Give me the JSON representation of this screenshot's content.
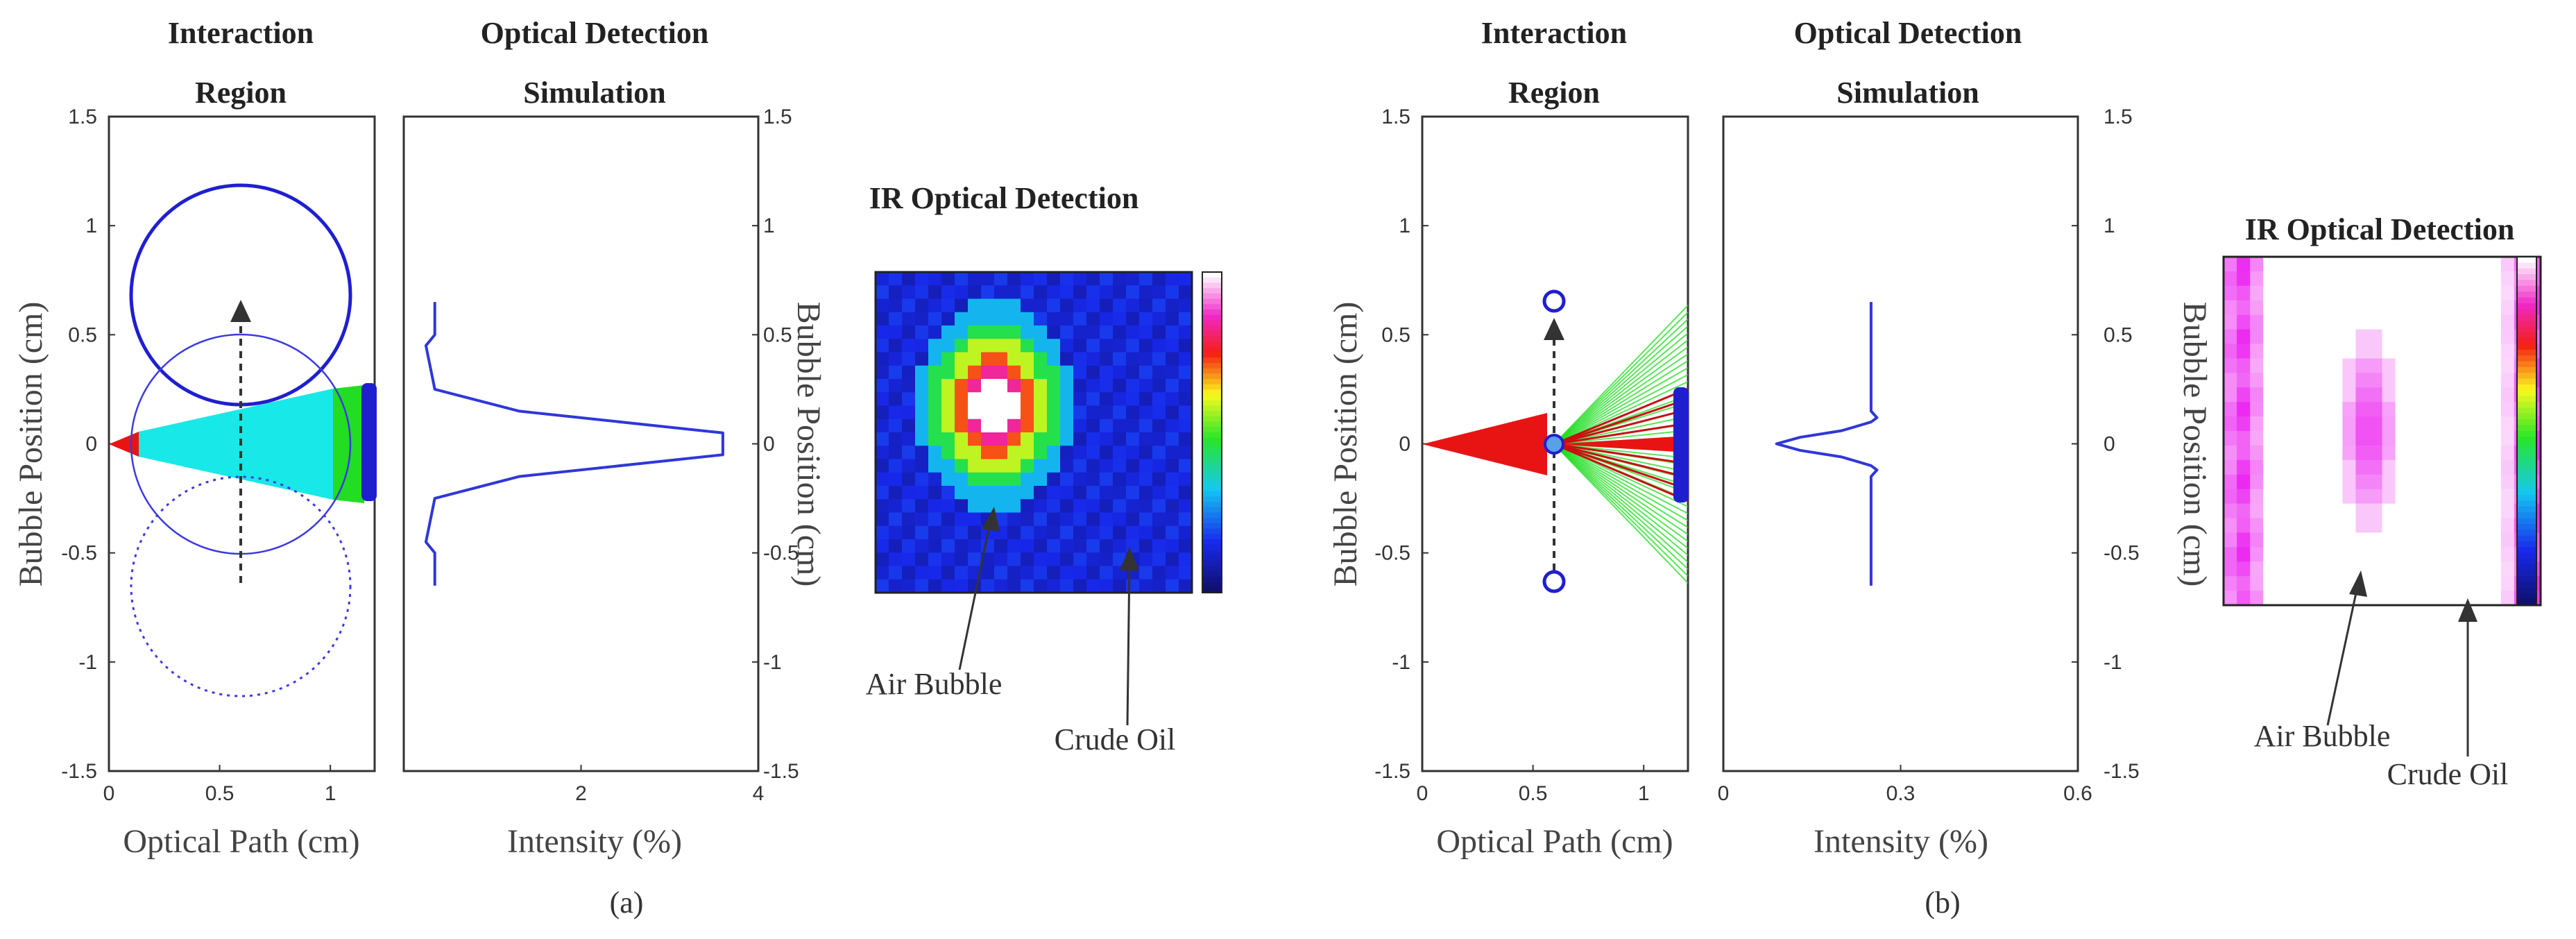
{
  "colors": {
    "bubble": "#1f1fd0",
    "cone_cyan": "#18e8e8",
    "cone_green": "#22dd22",
    "cone_red": "#e81414",
    "detector": "#1f1fd0",
    "trace": "#2f37d8",
    "ir_low": "#101060",
    "ir_high": "#ff66ff"
  },
  "panels": [
    {
      "id": "a",
      "caption": "(a)",
      "interaction": {
        "title_line1": "Interaction",
        "title_line2": "Region",
        "xlabel": "Optical Path (cm)",
        "ylabel": "Bubble Position (cm)",
        "xticks": [
          "0",
          "0.5",
          "1"
        ],
        "yticks": [
          "1.5",
          "1",
          "0.5",
          "0",
          "-0.5",
          "-1",
          "-1.5"
        ],
        "bubble_radius_cm": 0.5,
        "bubble_center_x_cm": 0.6,
        "bubble_positions_cm": [
          0.65,
          0,
          -0.65
        ]
      },
      "simulation": {
        "title_line1": "Optical Detection",
        "title_line2": "Simulation",
        "xlabel": "Intensity (%)",
        "ylabel": "Bubble Position (cm)",
        "xticks": [
          "2",
          "4"
        ],
        "yticks": [
          "1.5",
          "1",
          "0.5",
          "0",
          "-0.5",
          "-1",
          "-1.5"
        ]
      },
      "ir": {
        "title": "IR Optical Detection",
        "label_bubble": "Air Bubble",
        "label_oil": "Crude Oil"
      }
    },
    {
      "id": "b",
      "caption": "(b)",
      "interaction": {
        "title_line1": "Interaction",
        "title_line2": "Region",
        "xlabel": "Optical Path (cm)",
        "ylabel": "Bubble Position (cm)",
        "xticks": [
          "0",
          "0.5",
          "1"
        ],
        "yticks": [
          "1.5",
          "1",
          "0.5",
          "0",
          "-0.5",
          "-1",
          "-1.5"
        ],
        "bubble_radius_cm": 0.04,
        "bubble_center_x_cm": 0.6,
        "bubble_positions_cm": [
          0.65,
          0,
          -0.65
        ]
      },
      "simulation": {
        "title_line1": "Optical Detection",
        "title_line2": "Simulation",
        "xlabel": "Intensity (%)",
        "ylabel": "Bubble Position (cm)",
        "xticks": [
          "0",
          "0.3",
          "0.6"
        ],
        "yticks": [
          "1.5",
          "1",
          "0.5",
          "0",
          "-0.5",
          "-1",
          "-1.5"
        ]
      },
      "ir": {
        "title": "IR Optical Detection",
        "label_bubble": "Air Bubble",
        "label_oil": "Crude Oil"
      }
    }
  ],
  "chart_data": [
    {
      "type": "line",
      "panel": "a",
      "xlabel": "Intensity (%)",
      "ylabel": "Bubble Position (cm)",
      "xlim": [
        0,
        4
      ],
      "ylim": [
        -1.5,
        1.5
      ],
      "series": [
        {
          "x": [
            0.35,
            0.35,
            0.25,
            0.35,
            1.3,
            3.6,
            3.6,
            1.3,
            0.35,
            0.25,
            0.35,
            0.35
          ],
          "y": [
            0.65,
            0.5,
            0.45,
            0.25,
            0.15,
            0.05,
            -0.05,
            -0.15,
            -0.25,
            -0.45,
            -0.5,
            -0.65
          ]
        }
      ]
    },
    {
      "type": "line",
      "panel": "b",
      "xlabel": "Intensity (%)",
      "ylabel": "Bubble Position (cm)",
      "xlim": [
        0,
        0.6
      ],
      "ylim": [
        -1.5,
        1.5
      ],
      "series": [
        {
          "x": [
            0.25,
            0.25,
            0.26,
            0.25,
            0.2,
            0.13,
            0.09,
            0.13,
            0.2,
            0.25,
            0.26,
            0.25,
            0.25
          ],
          "y": [
            0.65,
            0.15,
            0.12,
            0.1,
            0.06,
            0.03,
            0,
            -0.03,
            -0.06,
            -0.1,
            -0.12,
            -0.15,
            -0.65
          ]
        }
      ]
    }
  ]
}
